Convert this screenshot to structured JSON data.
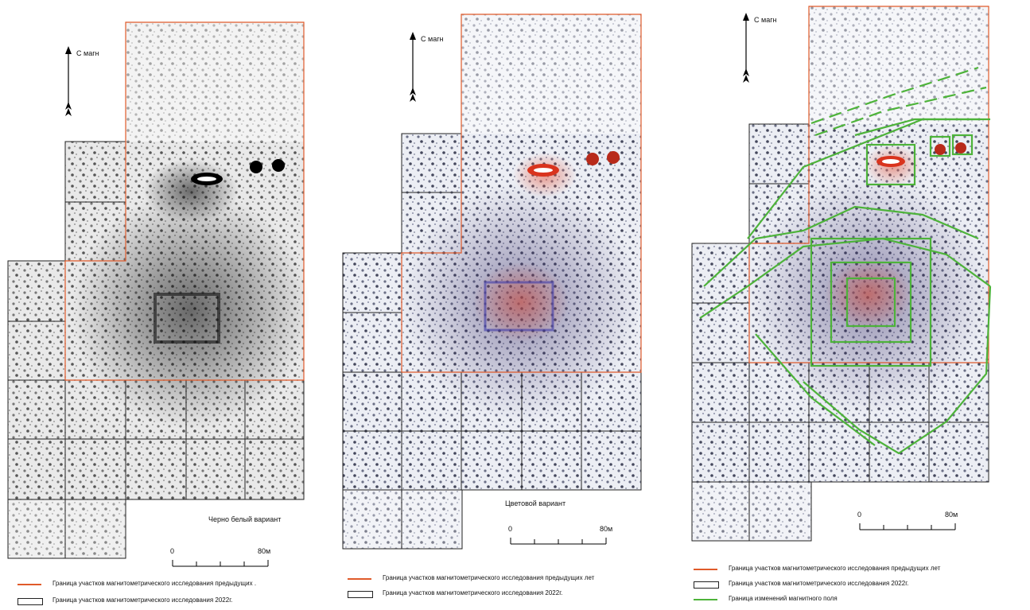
{
  "north_label": "С магн",
  "panels": [
    {
      "caption": "Черно белый вариант",
      "scale": {
        "start": "0",
        "end": "80м"
      },
      "legend": [
        {
          "type": "previous",
          "text": "Граница участков магнитометрического исследования предыдущих ."
        },
        {
          "type": "current",
          "text": "Граница участков магнитометрического исследования 2022г."
        }
      ]
    },
    {
      "caption": "Цветовой вариант",
      "scale": {
        "start": "0",
        "end": "80м"
      },
      "legend": [
        {
          "type": "previous",
          "text": "Граница участков магнитометрического исследования предыдущих лет"
        },
        {
          "type": "current",
          "text": "Граница участков магнитометрического исследования 2022г."
        }
      ]
    },
    {
      "caption": "",
      "scale": {
        "start": "0",
        "end": "80м"
      },
      "legend": [
        {
          "type": "previous",
          "text": "Граница участков магнитометрического исследования предыдущих лет"
        },
        {
          "type": "current",
          "text": "Граница участков магнитометрического исследования 2022г."
        },
        {
          "type": "field",
          "text": "Граница изменений магнитного поля"
        }
      ]
    }
  ],
  "colors": {
    "previous_boundary": "#e05a2a",
    "current_boundary": "#222222",
    "field_change": "#4db33a"
  }
}
